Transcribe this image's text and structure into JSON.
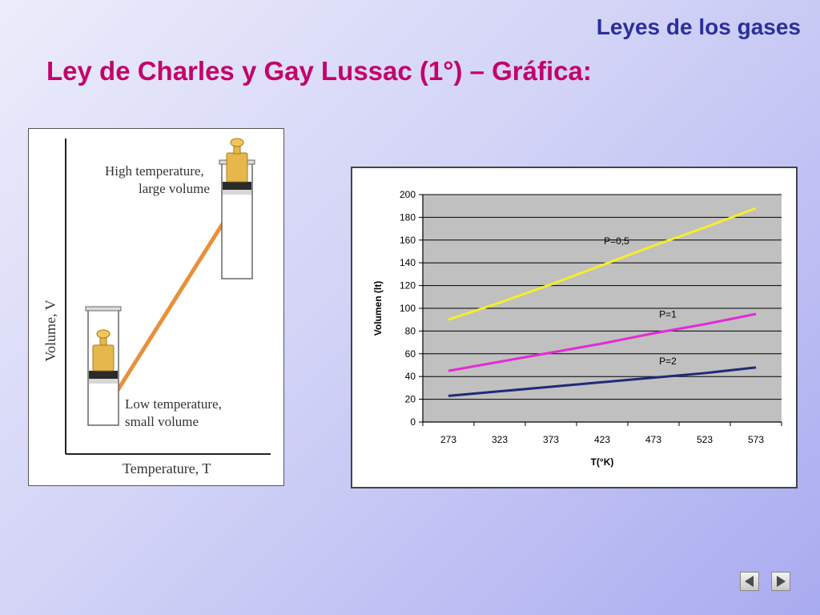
{
  "header": {
    "section_title": "Leyes de los gases",
    "slide_title": "Ley de Charles y Gay Lussac (1°) – Gráfica:"
  },
  "illustration": {
    "y_axis_label": "Volume, V",
    "x_axis_label": "Temperature, T",
    "high_label_line1": "High temperature,",
    "high_label_line2": "large volume",
    "low_label_line1": "Low temperature,",
    "low_label_line2": "small volume",
    "line_color": "#e8903a"
  },
  "chart_data": {
    "type": "line",
    "x": [
      273,
      323,
      373,
      423,
      473,
      523,
      573
    ],
    "xlabel": "T(°K)",
    "ylabel": "Volumen (lt)",
    "ylim": [
      0,
      200
    ],
    "yticks": [
      0,
      20,
      40,
      60,
      80,
      100,
      120,
      140,
      160,
      180,
      200
    ],
    "grid": true,
    "series": [
      {
        "name": "P=0,5",
        "color": "#f5ee2a",
        "values": [
          90,
          105,
          121,
          138,
          155,
          171,
          188
        ]
      },
      {
        "name": "P=1",
        "color": "#e42ad6",
        "values": [
          45,
          53,
          61,
          69,
          78,
          86,
          95
        ]
      },
      {
        "name": "P=2",
        "color": "#1f2a78",
        "values": [
          23,
          27,
          31,
          35,
          39,
          43,
          48
        ]
      }
    ]
  },
  "navigation": {
    "prev_icon": "triangle-left-icon",
    "next_icon": "triangle-right-icon"
  }
}
